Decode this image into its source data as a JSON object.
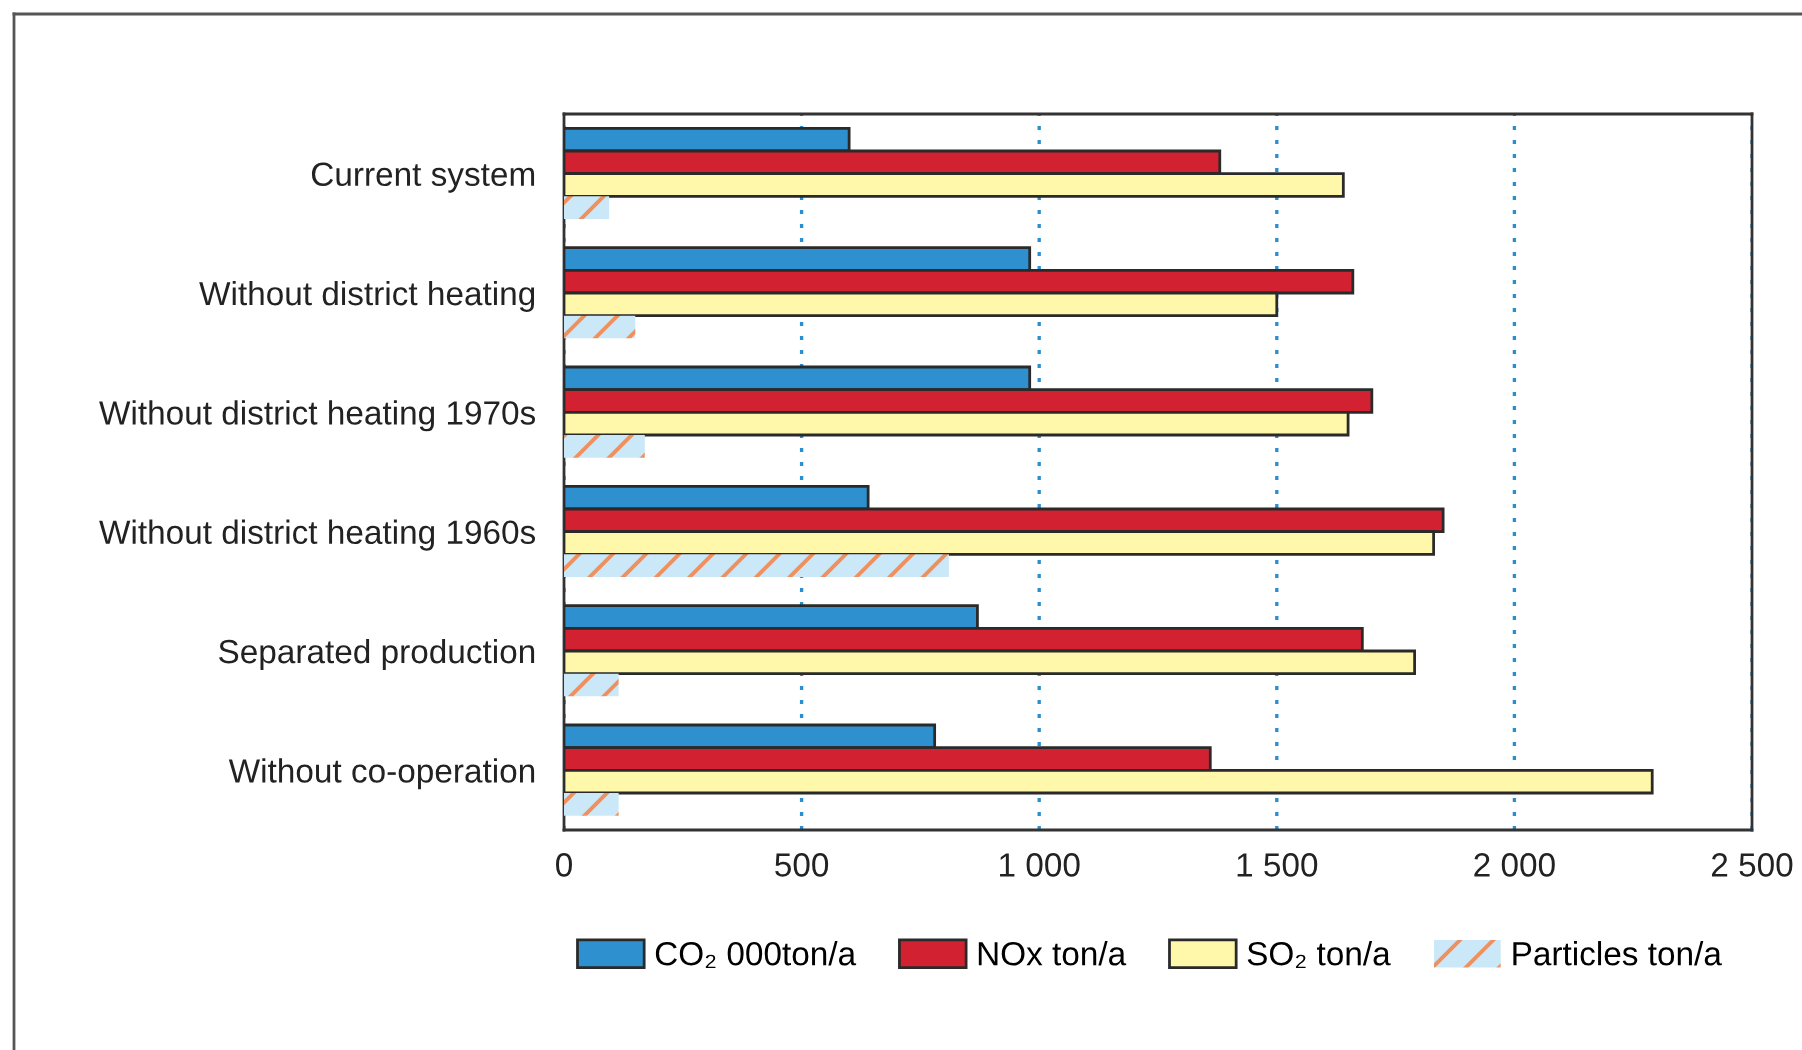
{
  "chart_data": {
    "type": "bar",
    "orientation": "horizontal",
    "categories": [
      "Current system",
      "Without district heating",
      "Without district heating 1970s",
      "Without district heating 1960s",
      "Separated production",
      "Without co-operation"
    ],
    "series": [
      {
        "name": "CO₂ 000ton/a",
        "color": "#2f90d0",
        "values": [
          600,
          980,
          980,
          640,
          870,
          780
        ]
      },
      {
        "name": "NOx ton/a",
        "color": "#d22232",
        "values": [
          1380,
          1660,
          1700,
          1850,
          1680,
          1360
        ]
      },
      {
        "name": "SO₂ ton/a",
        "color": "#fff8aa",
        "values": [
          1640,
          1500,
          1650,
          1830,
          1790,
          2290
        ]
      },
      {
        "name": "Particles ton/a",
        "color": "#cbe8f8",
        "values": [
          95,
          150,
          170,
          810,
          115,
          115
        ]
      }
    ],
    "xlim": [
      0,
      2500
    ],
    "xticks": [
      0,
      500,
      {
        "value": 1000,
        "label": "1 000"
      },
      {
        "value": 1500,
        "label": "1 500"
      },
      {
        "value": 2000,
        "label": "2 000"
      },
      {
        "value": 2500,
        "label": "2 500"
      }
    ],
    "grid": "x",
    "legend": "bottom"
  }
}
